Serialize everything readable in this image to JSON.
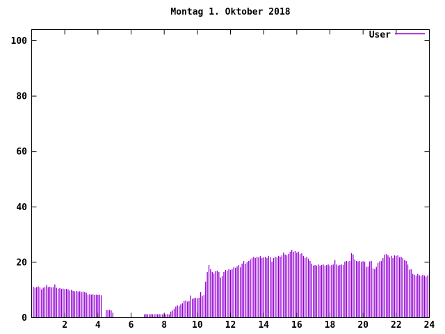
{
  "chart_data": {
    "type": "bar",
    "style": "impulses",
    "title": "Montag 1. Oktober 2018",
    "xlabel": "",
    "ylabel": "",
    "xlim": [
      0,
      24
    ],
    "ylim": [
      0,
      100
    ],
    "x_ticks": [
      2,
      4,
      6,
      8,
      10,
      12,
      14,
      16,
      18,
      20,
      22,
      24
    ],
    "y_ticks": [
      0,
      20,
      40,
      60,
      80,
      100
    ],
    "grid": false,
    "legend_position": "top-right-inside",
    "background_color": "#ffffff",
    "axis_color": "#000000",
    "series": [
      {
        "name": "User",
        "color": "#9400d3",
        "x_start_hours": 0.1,
        "x_interval_hours": 0.1,
        "values": [
          11.2,
          10.8,
          11.0,
          11.3,
          10.9,
          10.2,
          10.8,
          11.0,
          11.8,
          11.0,
          11.2,
          10.9,
          11.0,
          12.0,
          10.8,
          10.5,
          10.7,
          10.4,
          10.5,
          10.3,
          10.4,
          10.2,
          9.8,
          10.0,
          9.7,
          9.5,
          9.7,
          9.4,
          9.5,
          9.3,
          9.4,
          9.2,
          9.0,
          8.3,
          8.4,
          8.3,
          8.4,
          8.2,
          8.3,
          8.2,
          8.3,
          8.1,
          0,
          0,
          2.8,
          2.7,
          2.8,
          2.6,
          1.8,
          0,
          0,
          0,
          0,
          0,
          0,
          0,
          0,
          0,
          0,
          0,
          0,
          0,
          0,
          0,
          0,
          0,
          0,
          1.2,
          1.3,
          1.2,
          1.2,
          1.3,
          1.2,
          1.2,
          1.3,
          1.2,
          1.3,
          1.2,
          1.2,
          1.3,
          1.2,
          1.3,
          1.2,
          2.2,
          2.6,
          3.2,
          4.0,
          4.4,
          4.2,
          4.8,
          5.2,
          6.0,
          6.2,
          5.8,
          6.0,
          8.0,
          6.8,
          7.0,
          7.2,
          7.0,
          7.2,
          9.2,
          7.8,
          8.2,
          13.0,
          16.5,
          19.0,
          17.5,
          16.5,
          16.0,
          16.8,
          17.0,
          16.5,
          14.5,
          15.0,
          16.5,
          17.2,
          17.0,
          17.5,
          17.2,
          17.5,
          18.2,
          18.0,
          18.5,
          19.0,
          18.2,
          19.5,
          20.5,
          19.5,
          20.0,
          20.5,
          21.0,
          21.5,
          22.0,
          21.5,
          22.0,
          21.8,
          22.2,
          21.5,
          21.8,
          22.0,
          21.5,
          22.3,
          21.8,
          20.2,
          21.5,
          22.0,
          21.8,
          22.3,
          22.0,
          22.5,
          23.5,
          22.8,
          22.5,
          23.0,
          23.8,
          24.5,
          23.8,
          24.0,
          23.5,
          23.8,
          23.0,
          23.3,
          22.3,
          21.5,
          22.0,
          21.3,
          20.5,
          19.5,
          18.8,
          19.0,
          18.8,
          19.2,
          18.8,
          19.0,
          19.2,
          18.8,
          19.0,
          19.2,
          18.8,
          19.0,
          19.2,
          20.8,
          19.2,
          18.8,
          19.0,
          19.2,
          19.0,
          20.2,
          20.5,
          20.3,
          20.5,
          23.3,
          22.8,
          21.0,
          20.5,
          20.3,
          20.5,
          20.2,
          20.4,
          20.2,
          18.3,
          18.5,
          20.3,
          20.5,
          17.8,
          17.5,
          18.3,
          19.8,
          20.3,
          20.5,
          21.5,
          22.8,
          23.0,
          22.5,
          21.8,
          22.3,
          21.5,
          22.5,
          22.3,
          22.5,
          21.8,
          22.0,
          21.5,
          20.8,
          20.5,
          19.2,
          17.3,
          17.5,
          15.8,
          15.5,
          15.2,
          15.8,
          15.3,
          15.0,
          15.5,
          15.2,
          14.8,
          15.3,
          16.5
        ]
      }
    ],
    "legend": {
      "label": "User"
    }
  }
}
